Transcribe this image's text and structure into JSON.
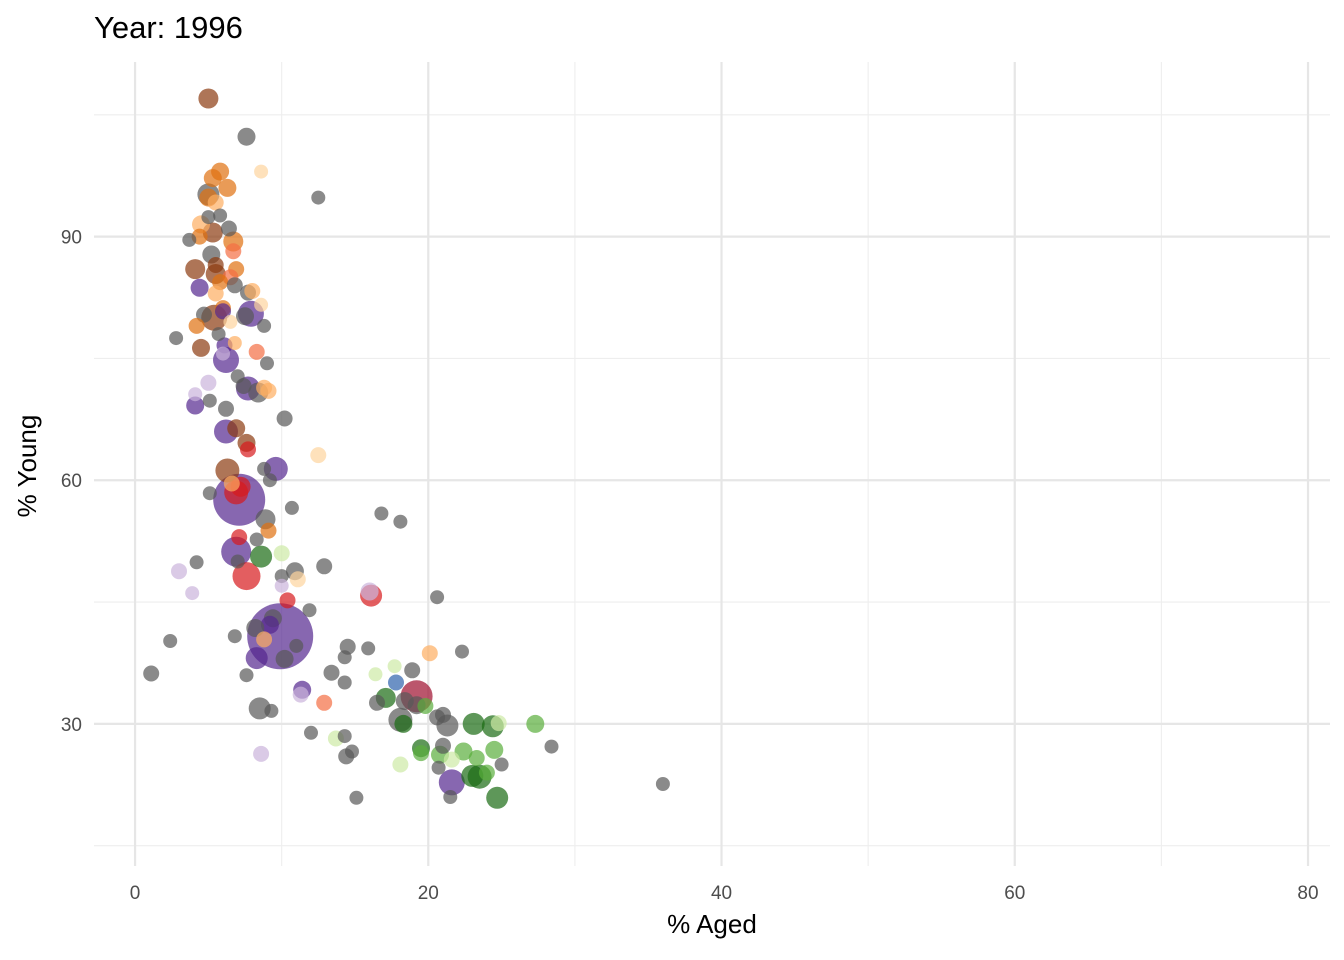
{
  "chart_data": {
    "type": "scatter",
    "title": "Year: 1996",
    "xlabel": "% Aged",
    "ylabel": "% Young",
    "xlim": [
      -2.8,
      81.5
    ],
    "ylim": [
      12.5,
      111.5
    ],
    "x_ticks": [
      0,
      20,
      40,
      60,
      80
    ],
    "y_ticks": [
      30,
      60,
      90
    ],
    "grid": true,
    "legend": "none",
    "point_opacity": 0.7,
    "colors": {
      "gray": "#595959",
      "purple": "#54278f",
      "lavender": "#cbb4dc",
      "brown": "#8c3a0f",
      "orange": "#e0700f",
      "light_orange": "#fdae61",
      "pale_orange": "#fdd49e",
      "red": "#d7191c",
      "salmon": "#f46d43",
      "crimson": "#9e0e2d",
      "dark_green": "#1a6b12",
      "green": "#5aae3c",
      "light_green": "#cde9a5",
      "blue": "#2d62ad"
    },
    "points": [
      {
        "x": 5.0,
        "y": 107.0,
        "r": 10,
        "c": "brown"
      },
      {
        "x": 7.6,
        "y": 102.3,
        "r": 9,
        "c": "gray"
      },
      {
        "x": 8.6,
        "y": 98.0,
        "r": 7,
        "c": "pale_orange"
      },
      {
        "x": 5.8,
        "y": 98.0,
        "r": 9,
        "c": "orange"
      },
      {
        "x": 5.3,
        "y": 97.2,
        "r": 9,
        "c": "orange"
      },
      {
        "x": 12.5,
        "y": 94.8,
        "r": 7,
        "c": "gray"
      },
      {
        "x": 6.3,
        "y": 96.0,
        "r": 9,
        "c": "orange"
      },
      {
        "x": 5.0,
        "y": 95.2,
        "r": 11,
        "c": "gray"
      },
      {
        "x": 5.0,
        "y": 94.8,
        "r": 9,
        "c": "orange"
      },
      {
        "x": 5.5,
        "y": 94.2,
        "r": 8,
        "c": "light_orange"
      },
      {
        "x": 5.8,
        "y": 92.6,
        "r": 7,
        "c": "gray"
      },
      {
        "x": 5.0,
        "y": 92.4,
        "r": 7,
        "c": "gray"
      },
      {
        "x": 4.5,
        "y": 91.5,
        "r": 9,
        "c": "light_orange"
      },
      {
        "x": 6.4,
        "y": 91.0,
        "r": 8,
        "c": "gray"
      },
      {
        "x": 5.3,
        "y": 90.5,
        "r": 10,
        "c": "brown"
      },
      {
        "x": 4.4,
        "y": 90.0,
        "r": 8,
        "c": "orange"
      },
      {
        "x": 3.7,
        "y": 89.6,
        "r": 7,
        "c": "gray"
      },
      {
        "x": 6.7,
        "y": 89.4,
        "r": 10,
        "c": "orange"
      },
      {
        "x": 6.7,
        "y": 88.2,
        "r": 8,
        "c": "salmon"
      },
      {
        "x": 5.2,
        "y": 87.8,
        "r": 9,
        "c": "gray"
      },
      {
        "x": 5.5,
        "y": 86.5,
        "r": 8,
        "c": "brown"
      },
      {
        "x": 4.1,
        "y": 86.0,
        "r": 10,
        "c": "brown"
      },
      {
        "x": 6.9,
        "y": 86.0,
        "r": 8,
        "c": "orange"
      },
      {
        "x": 5.5,
        "y": 85.4,
        "r": 10,
        "c": "brown"
      },
      {
        "x": 6.5,
        "y": 85.0,
        "r": 8,
        "c": "salmon"
      },
      {
        "x": 5.8,
        "y": 84.4,
        "r": 8,
        "c": "orange"
      },
      {
        "x": 6.8,
        "y": 84.0,
        "r": 8,
        "c": "gray"
      },
      {
        "x": 4.4,
        "y": 83.7,
        "r": 9,
        "c": "purple"
      },
      {
        "x": 7.7,
        "y": 83.1,
        "r": 8,
        "c": "gray"
      },
      {
        "x": 8.0,
        "y": 83.3,
        "r": 8,
        "c": "light_orange"
      },
      {
        "x": 5.5,
        "y": 83.0,
        "r": 8,
        "c": "light_orange"
      },
      {
        "x": 8.6,
        "y": 81.6,
        "r": 7,
        "c": "pale_orange"
      },
      {
        "x": 6.0,
        "y": 81.2,
        "r": 8,
        "c": "orange"
      },
      {
        "x": 4.7,
        "y": 80.4,
        "r": 8,
        "c": "gray"
      },
      {
        "x": 6.0,
        "y": 80.8,
        "r": 8,
        "c": "purple"
      },
      {
        "x": 5.4,
        "y": 80.0,
        "r": 13,
        "c": "brown"
      },
      {
        "x": 7.5,
        "y": 80.2,
        "r": 9,
        "c": "gray"
      },
      {
        "x": 7.9,
        "y": 80.5,
        "r": 13,
        "c": "purple"
      },
      {
        "x": 6.5,
        "y": 79.5,
        "r": 7,
        "c": "pale_orange"
      },
      {
        "x": 4.2,
        "y": 79.0,
        "r": 8,
        "c": "orange"
      },
      {
        "x": 8.8,
        "y": 79.0,
        "r": 7,
        "c": "gray"
      },
      {
        "x": 5.7,
        "y": 78.0,
        "r": 7,
        "c": "gray"
      },
      {
        "x": 2.8,
        "y": 77.5,
        "r": 7,
        "c": "gray"
      },
      {
        "x": 6.8,
        "y": 76.9,
        "r": 7,
        "c": "light_orange"
      },
      {
        "x": 6.1,
        "y": 76.6,
        "r": 8,
        "c": "purple"
      },
      {
        "x": 4.5,
        "y": 76.3,
        "r": 9,
        "c": "brown"
      },
      {
        "x": 8.3,
        "y": 75.8,
        "r": 8,
        "c": "salmon"
      },
      {
        "x": 6.0,
        "y": 75.6,
        "r": 7,
        "c": "lavender"
      },
      {
        "x": 6.2,
        "y": 74.8,
        "r": 13,
        "c": "purple"
      },
      {
        "x": 9.0,
        "y": 74.4,
        "r": 7,
        "c": "gray"
      },
      {
        "x": 7.0,
        "y": 72.8,
        "r": 7,
        "c": "gray"
      },
      {
        "x": 5.0,
        "y": 72.0,
        "r": 8,
        "c": "lavender"
      },
      {
        "x": 7.4,
        "y": 71.6,
        "r": 8,
        "c": "gray"
      },
      {
        "x": 7.7,
        "y": 71.3,
        "r": 12,
        "c": "purple"
      },
      {
        "x": 8.8,
        "y": 71.4,
        "r": 8,
        "c": "light_orange"
      },
      {
        "x": 9.1,
        "y": 71.0,
        "r": 8,
        "c": "light_orange"
      },
      {
        "x": 8.4,
        "y": 70.8,
        "r": 10,
        "c": "gray"
      },
      {
        "x": 4.1,
        "y": 70.6,
        "r": 7,
        "c": "lavender"
      },
      {
        "x": 5.1,
        "y": 69.8,
        "r": 7,
        "c": "gray"
      },
      {
        "x": 4.1,
        "y": 69.2,
        "r": 9,
        "c": "purple"
      },
      {
        "x": 6.2,
        "y": 68.8,
        "r": 8,
        "c": "gray"
      },
      {
        "x": 10.2,
        "y": 67.6,
        "r": 8,
        "c": "gray"
      },
      {
        "x": 6.9,
        "y": 66.4,
        "r": 9,
        "c": "brown"
      },
      {
        "x": 6.2,
        "y": 66.0,
        "r": 12,
        "c": "purple"
      },
      {
        "x": 7.6,
        "y": 64.6,
        "r": 9,
        "c": "brown"
      },
      {
        "x": 7.7,
        "y": 63.8,
        "r": 8,
        "c": "red"
      },
      {
        "x": 12.5,
        "y": 63.1,
        "r": 8,
        "c": "pale_orange"
      },
      {
        "x": 6.3,
        "y": 61.2,
        "r": 12,
        "c": "brown"
      },
      {
        "x": 8.8,
        "y": 61.4,
        "r": 7,
        "c": "gray"
      },
      {
        "x": 9.6,
        "y": 61.4,
        "r": 12,
        "c": "purple"
      },
      {
        "x": 9.2,
        "y": 60.0,
        "r": 7,
        "c": "gray"
      },
      {
        "x": 6.6,
        "y": 59.6,
        "r": 8,
        "c": "light_orange"
      },
      {
        "x": 7.2,
        "y": 59.2,
        "r": 10,
        "c": "red"
      },
      {
        "x": 5.1,
        "y": 58.4,
        "r": 7,
        "c": "gray"
      },
      {
        "x": 6.9,
        "y": 58.5,
        "r": 12,
        "c": "red"
      },
      {
        "x": 7.1,
        "y": 57.6,
        "r": 26,
        "c": "purple"
      },
      {
        "x": 8.9,
        "y": 55.2,
        "r": 10,
        "c": "gray"
      },
      {
        "x": 10.7,
        "y": 56.6,
        "r": 7,
        "c": "gray"
      },
      {
        "x": 16.8,
        "y": 55.9,
        "r": 7,
        "c": "gray"
      },
      {
        "x": 18.1,
        "y": 54.9,
        "r": 7,
        "c": "gray"
      },
      {
        "x": 9.1,
        "y": 53.8,
        "r": 8,
        "c": "orange"
      },
      {
        "x": 7.1,
        "y": 53.0,
        "r": 8,
        "c": "red"
      },
      {
        "x": 8.3,
        "y": 52.7,
        "r": 7,
        "c": "gray"
      },
      {
        "x": 6.9,
        "y": 51.2,
        "r": 15,
        "c": "purple"
      },
      {
        "x": 8.6,
        "y": 50.6,
        "r": 11,
        "c": "dark_green"
      },
      {
        "x": 10.0,
        "y": 51.0,
        "r": 8,
        "c": "light_green"
      },
      {
        "x": 4.2,
        "y": 49.9,
        "r": 7,
        "c": "gray"
      },
      {
        "x": 7.0,
        "y": 50.0,
        "r": 7,
        "c": "gray"
      },
      {
        "x": 12.9,
        "y": 49.4,
        "r": 8,
        "c": "gray"
      },
      {
        "x": 10.9,
        "y": 48.8,
        "r": 9,
        "c": "gray"
      },
      {
        "x": 3.0,
        "y": 48.8,
        "r": 8,
        "c": "lavender"
      },
      {
        "x": 7.6,
        "y": 48.2,
        "r": 14,
        "c": "red"
      },
      {
        "x": 10.0,
        "y": 48.2,
        "r": 7,
        "c": "gray"
      },
      {
        "x": 11.1,
        "y": 47.8,
        "r": 8,
        "c": "pale_orange"
      },
      {
        "x": 10.0,
        "y": 47.0,
        "r": 7,
        "c": "lavender"
      },
      {
        "x": 16.0,
        "y": 46.3,
        "r": 9,
        "c": "lavender"
      },
      {
        "x": 16.1,
        "y": 45.8,
        "r": 11,
        "c": "red"
      },
      {
        "x": 3.9,
        "y": 46.1,
        "r": 7,
        "c": "lavender"
      },
      {
        "x": 20.6,
        "y": 45.6,
        "r": 7,
        "c": "gray"
      },
      {
        "x": 10.4,
        "y": 45.2,
        "r": 8,
        "c": "red"
      },
      {
        "x": 11.9,
        "y": 44.0,
        "r": 7,
        "c": "gray"
      },
      {
        "x": 9.4,
        "y": 43.0,
        "r": 9,
        "c": "gray"
      },
      {
        "x": 9.2,
        "y": 42.2,
        "r": 9,
        "c": "purple"
      },
      {
        "x": 8.2,
        "y": 41.8,
        "r": 9,
        "c": "gray"
      },
      {
        "x": 9.9,
        "y": 40.8,
        "r": 33,
        "c": "purple"
      },
      {
        "x": 6.8,
        "y": 40.8,
        "r": 7,
        "c": "gray"
      },
      {
        "x": 8.8,
        "y": 40.4,
        "r": 8,
        "c": "light_orange"
      },
      {
        "x": 2.4,
        "y": 40.2,
        "r": 7,
        "c": "gray"
      },
      {
        "x": 14.5,
        "y": 39.5,
        "r": 8,
        "c": "gray"
      },
      {
        "x": 15.9,
        "y": 39.3,
        "r": 7,
        "c": "gray"
      },
      {
        "x": 20.1,
        "y": 38.7,
        "r": 8,
        "c": "light_orange"
      },
      {
        "x": 22.3,
        "y": 38.9,
        "r": 7,
        "c": "gray"
      },
      {
        "x": 10.2,
        "y": 38.0,
        "r": 9,
        "c": "gray"
      },
      {
        "x": 11.0,
        "y": 39.6,
        "r": 7,
        "c": "gray"
      },
      {
        "x": 8.3,
        "y": 38.1,
        "r": 11,
        "c": "purple"
      },
      {
        "x": 14.3,
        "y": 38.2,
        "r": 7,
        "c": "gray"
      },
      {
        "x": 18.9,
        "y": 36.6,
        "r": 8,
        "c": "gray"
      },
      {
        "x": 13.4,
        "y": 36.3,
        "r": 8,
        "c": "gray"
      },
      {
        "x": 17.7,
        "y": 37.1,
        "r": 7,
        "c": "light_green"
      },
      {
        "x": 16.4,
        "y": 36.1,
        "r": 7,
        "c": "light_green"
      },
      {
        "x": 7.6,
        "y": 36.0,
        "r": 7,
        "c": "gray"
      },
      {
        "x": 1.1,
        "y": 36.2,
        "r": 8,
        "c": "gray"
      },
      {
        "x": 17.8,
        "y": 35.1,
        "r": 8,
        "c": "blue"
      },
      {
        "x": 14.3,
        "y": 35.1,
        "r": 7,
        "c": "gray"
      },
      {
        "x": 11.4,
        "y": 34.2,
        "r": 9,
        "c": "purple"
      },
      {
        "x": 11.3,
        "y": 33.6,
        "r": 8,
        "c": "lavender"
      },
      {
        "x": 19.2,
        "y": 33.4,
        "r": 16,
        "c": "crimson"
      },
      {
        "x": 16.5,
        "y": 32.6,
        "r": 8,
        "c": "gray"
      },
      {
        "x": 12.9,
        "y": 32.6,
        "r": 8,
        "c": "salmon"
      },
      {
        "x": 17.1,
        "y": 33.2,
        "r": 10,
        "c": "dark_green"
      },
      {
        "x": 18.4,
        "y": 32.8,
        "r": 9,
        "c": "gray"
      },
      {
        "x": 19.2,
        "y": 32.3,
        "r": 9,
        "c": "gray"
      },
      {
        "x": 8.5,
        "y": 31.9,
        "r": 11,
        "c": "gray"
      },
      {
        "x": 19.8,
        "y": 32.2,
        "r": 8,
        "c": "green"
      },
      {
        "x": 9.3,
        "y": 31.6,
        "r": 7,
        "c": "gray"
      },
      {
        "x": 18.1,
        "y": 30.5,
        "r": 12,
        "c": "gray"
      },
      {
        "x": 18.3,
        "y": 30.0,
        "r": 9,
        "c": "dark_green"
      },
      {
        "x": 21.0,
        "y": 31.1,
        "r": 8,
        "c": "gray"
      },
      {
        "x": 20.6,
        "y": 30.8,
        "r": 8,
        "c": "gray"
      },
      {
        "x": 21.3,
        "y": 29.8,
        "r": 11,
        "c": "gray"
      },
      {
        "x": 23.1,
        "y": 30.0,
        "r": 11,
        "c": "dark_green"
      },
      {
        "x": 24.4,
        "y": 29.7,
        "r": 11,
        "c": "dark_green"
      },
      {
        "x": 24.8,
        "y": 30.1,
        "r": 8,
        "c": "light_green"
      },
      {
        "x": 27.3,
        "y": 30.0,
        "r": 9,
        "c": "green"
      },
      {
        "x": 12.0,
        "y": 28.9,
        "r": 7,
        "c": "gray"
      },
      {
        "x": 13.7,
        "y": 28.2,
        "r": 8,
        "c": "light_green"
      },
      {
        "x": 14.3,
        "y": 28.5,
        "r": 7,
        "c": "gray"
      },
      {
        "x": 21.0,
        "y": 27.3,
        "r": 8,
        "c": "gray"
      },
      {
        "x": 19.5,
        "y": 27.0,
        "r": 9,
        "c": "dark_green"
      },
      {
        "x": 19.5,
        "y": 26.4,
        "r": 8,
        "c": "green"
      },
      {
        "x": 22.4,
        "y": 26.6,
        "r": 9,
        "c": "green"
      },
      {
        "x": 24.5,
        "y": 26.8,
        "r": 9,
        "c": "green"
      },
      {
        "x": 28.4,
        "y": 27.2,
        "r": 7,
        "c": "gray"
      },
      {
        "x": 14.8,
        "y": 26.6,
        "r": 7,
        "c": "gray"
      },
      {
        "x": 14.4,
        "y": 26.0,
        "r": 8,
        "c": "gray"
      },
      {
        "x": 20.8,
        "y": 26.2,
        "r": 9,
        "c": "green"
      },
      {
        "x": 21.6,
        "y": 25.6,
        "r": 8,
        "c": "light_green"
      },
      {
        "x": 23.3,
        "y": 25.8,
        "r": 8,
        "c": "green"
      },
      {
        "x": 8.6,
        "y": 26.3,
        "r": 8,
        "c": "lavender"
      },
      {
        "x": 18.1,
        "y": 25.0,
        "r": 8,
        "c": "light_green"
      },
      {
        "x": 20.7,
        "y": 24.6,
        "r": 7,
        "c": "gray"
      },
      {
        "x": 25.0,
        "y": 25.0,
        "r": 7,
        "c": "gray"
      },
      {
        "x": 23.0,
        "y": 23.6,
        "r": 11,
        "c": "dark_green"
      },
      {
        "x": 21.6,
        "y": 22.8,
        "r": 13,
        "c": "purple"
      },
      {
        "x": 23.5,
        "y": 23.5,
        "r": 12,
        "c": "dark_green"
      },
      {
        "x": 24.0,
        "y": 24.0,
        "r": 8,
        "c": "green"
      },
      {
        "x": 36.0,
        "y": 22.6,
        "r": 7,
        "c": "gray"
      },
      {
        "x": 24.7,
        "y": 20.9,
        "r": 11,
        "c": "dark_green"
      },
      {
        "x": 21.5,
        "y": 21.0,
        "r": 7,
        "c": "gray"
      },
      {
        "x": 15.1,
        "y": 20.9,
        "r": 7,
        "c": "gray"
      }
    ]
  }
}
